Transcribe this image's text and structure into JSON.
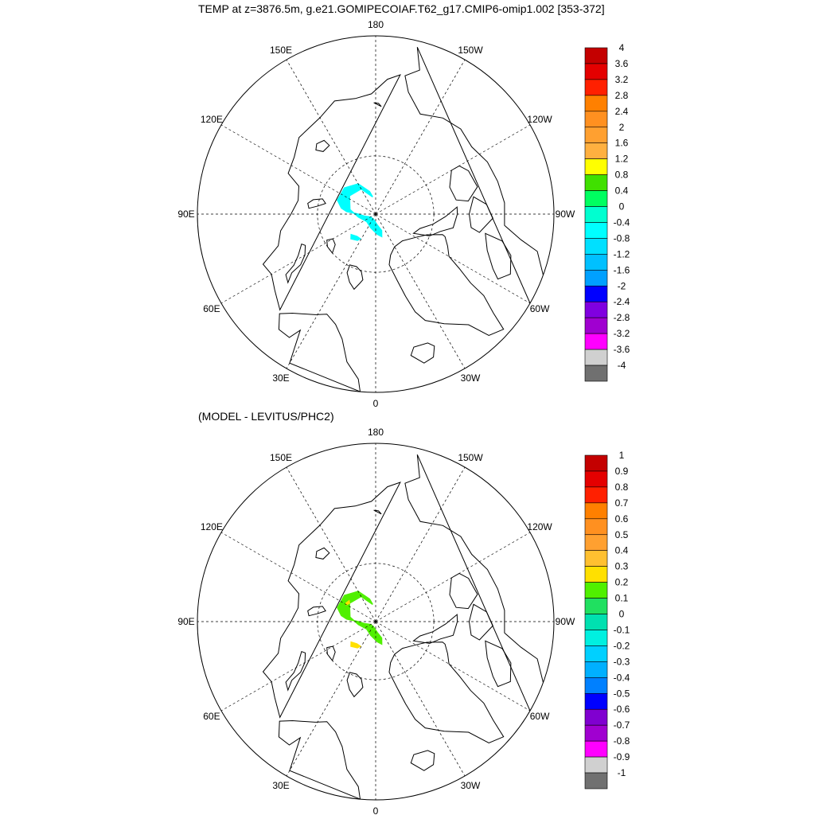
{
  "figure": {
    "title": "TEMP at z=3876.5m, g.e21.GOMIPECOIAF.T62_g17.CMIP6-omip1.002 [353-372]",
    "subtitle": "(MODEL - LEVITUS/PHC2)"
  },
  "graticule_labels": [
    "180",
    "150E",
    "120E",
    "90E",
    "60E",
    "30E",
    "0",
    "30W",
    "60W",
    "90W",
    "120W",
    "150W"
  ],
  "colors": {
    "land_outline": "#000000",
    "graticule": "#000000",
    "background": "#ffffff"
  },
  "panels": [
    {
      "name": "model-temperature",
      "projection": "north-polar-stereographic",
      "grid": true,
      "colorbar": {
        "labels": [
          "4",
          "3.6",
          "3.2",
          "2.8",
          "2.4",
          "2",
          "1.6",
          "1.2",
          "0.8",
          "0.4",
          "0",
          "-0.4",
          "-0.8",
          "-1.2",
          "-1.6",
          "-2",
          "-2.4",
          "-2.8",
          "-3.2",
          "-3.6",
          "-4"
        ],
        "colors": [
          "#c40000",
          "#e40000",
          "#ff2000",
          "#ff8000",
          "#ff9020",
          "#ffa030",
          "#ffb040",
          "#ffff00",
          "#40e000",
          "#00ff60",
          "#00ffd0",
          "#00ffff",
          "#00e0ff",
          "#00c0ff",
          "#00a0ff",
          "#0000ff",
          "#8000e0",
          "#a000d0",
          "#ff00ff",
          "#d0d0d0",
          "#707070"
        ]
      },
      "field": {
        "description": "temperature at depth",
        "patches": [
          {
            "color": "#00ffff",
            "lon_lat": [
              [
                165,
                86
              ],
              [
                150,
                84
              ],
              [
                130,
                83
              ],
              [
                110,
                83
              ],
              [
                100,
                84
              ],
              [
                95,
                85
              ],
              [
                90,
                87
              ],
              [
                80,
                88
              ],
              [
                60,
                89
              ],
              [
                20,
                89
              ],
              [
                -10,
                88
              ],
              [
                -20,
                87
              ],
              [
                -15,
                86
              ],
              [
                -5,
                86.5
              ],
              [
                20,
                87.5
              ],
              [
                50,
                88
              ],
              [
                80,
                87
              ],
              [
                100,
                85.5
              ],
              [
                125,
                84.5
              ],
              [
                150,
                85
              ],
              [
                170,
                87
              ]
            ]
          },
          {
            "color": "#00ffff",
            "lon_lat": [
              [
                35,
                84.5
              ],
              [
                45,
                84
              ],
              [
                50,
                84.5
              ],
              [
                40,
                85
              ],
              [
                32,
                85
              ]
            ]
          }
        ]
      }
    },
    {
      "name": "model-minus-levitus",
      "projection": "north-polar-stereographic",
      "grid": true,
      "colorbar": {
        "labels": [
          "1",
          "0.9",
          "0.8",
          "0.7",
          "0.6",
          "0.5",
          "0.4",
          "0.3",
          "0.2",
          "0.1",
          "0",
          "-0.1",
          "-0.2",
          "-0.3",
          "-0.4",
          "-0.5",
          "-0.6",
          "-0.7",
          "-0.8",
          "-0.9",
          "-1"
        ],
        "colors": [
          "#c40000",
          "#e40000",
          "#ff2000",
          "#ff8000",
          "#ff9020",
          "#ffa030",
          "#ffc030",
          "#ffe000",
          "#50f000",
          "#20e060",
          "#00e0b0",
          "#00f0e0",
          "#00d0ff",
          "#00b0ff",
          "#0080ff",
          "#0000ff",
          "#8000d0",
          "#a000d0",
          "#ff00ff",
          "#d0d0d0",
          "#707070"
        ]
      },
      "field": {
        "description": "difference from climatology",
        "patches": [
          {
            "color": "#50f000",
            "lon_lat": [
              [
                165,
                86
              ],
              [
                150,
                84
              ],
              [
                130,
                83
              ],
              [
                110,
                83
              ],
              [
                100,
                84
              ],
              [
                95,
                85
              ],
              [
                90,
                87
              ],
              [
                80,
                88
              ],
              [
                60,
                89
              ],
              [
                20,
                89
              ],
              [
                -10,
                88
              ],
              [
                -20,
                87
              ],
              [
                -15,
                86
              ],
              [
                -5,
                86.5
              ],
              [
                20,
                87.5
              ],
              [
                50,
                88
              ],
              [
                80,
                87
              ],
              [
                100,
                85.5
              ],
              [
                125,
                84.5
              ],
              [
                150,
                85
              ],
              [
                170,
                87
              ]
            ]
          },
          {
            "color": "#ffe000",
            "lon_lat": [
              [
                35,
                84.5
              ],
              [
                45,
                84
              ],
              [
                50,
                84.5
              ],
              [
                40,
                85
              ],
              [
                32,
                85
              ]
            ]
          },
          {
            "color": "#ffe000",
            "lon_lat": [
              [
                125,
                84.5
              ],
              [
                120,
                84.2
              ],
              [
                122,
                84
              ],
              [
                128,
                84.2
              ]
            ]
          }
        ]
      }
    }
  ]
}
